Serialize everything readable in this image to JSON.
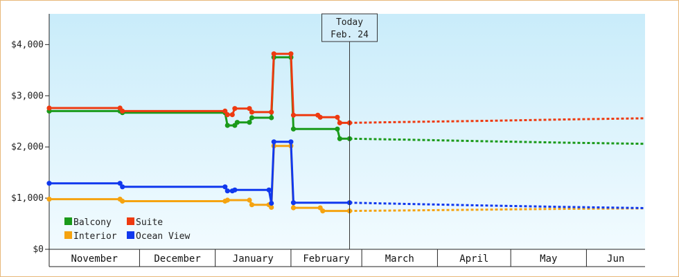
{
  "chart_data": {
    "type": "line",
    "ylabel": "",
    "xlabel": "",
    "ylim": [
      0,
      4600
    ],
    "xlim": [
      "2019-10-24",
      "2020-06-24"
    ],
    "y_ticks": [
      {
        "value": 0,
        "label": "$0"
      },
      {
        "value": 1000,
        "label": "$1,000"
      },
      {
        "value": 2000,
        "label": "$2,000"
      },
      {
        "value": 3000,
        "label": "$3,000"
      },
      {
        "value": 4000,
        "label": "$4,000"
      }
    ],
    "months": [
      {
        "label": "November",
        "start": "2019-10-24",
        "end": "2019-11-30"
      },
      {
        "label": "December",
        "start": "2019-11-30",
        "end": "2019-12-31"
      },
      {
        "label": "January",
        "start": "2019-12-31",
        "end": "2020-01-31"
      },
      {
        "label": "February",
        "start": "2020-01-31",
        "end": "2020-02-29"
      },
      {
        "label": "March",
        "start": "2020-02-29",
        "end": "2020-03-31"
      },
      {
        "label": "April",
        "start": "2020-03-31",
        "end": "2020-04-30"
      },
      {
        "label": "May",
        "start": "2020-04-30",
        "end": "2020-05-31"
      },
      {
        "label": "Jun",
        "start": "2020-05-31",
        "end": "2020-06-24"
      }
    ],
    "today": {
      "date": "2020-02-24",
      "label_line1": "Today",
      "label_line2": "Feb. 24"
    },
    "grid": false,
    "legend_position": "bottom-left",
    "series": [
      {
        "name": "Balcony",
        "color": "#1a9a1a",
        "points": [
          [
            "2019-10-24",
            2700
          ],
          [
            "2019-11-22",
            2700
          ],
          [
            "2019-11-23",
            2670
          ],
          [
            "2020-01-04",
            2670
          ],
          [
            "2020-01-05",
            2420
          ],
          [
            "2020-01-08",
            2420
          ],
          [
            "2020-01-09",
            2480
          ],
          [
            "2020-01-14",
            2480
          ],
          [
            "2020-01-15",
            2570
          ],
          [
            "2020-01-23",
            2570
          ],
          [
            "2020-01-24",
            3750
          ],
          [
            "2020-01-31",
            3750
          ],
          [
            "2020-02-01",
            2350
          ],
          [
            "2020-02-19",
            2350
          ],
          [
            "2020-02-20",
            2160
          ],
          [
            "2020-02-24",
            2160
          ]
        ],
        "forecast": [
          [
            "2020-02-24",
            2160
          ],
          [
            "2020-03-20",
            2140
          ],
          [
            "2020-04-20",
            2110
          ],
          [
            "2020-05-20",
            2085
          ],
          [
            "2020-06-24",
            2060
          ]
        ]
      },
      {
        "name": "Suite",
        "color": "#ee3a10",
        "points": [
          [
            "2019-10-24",
            2760
          ],
          [
            "2019-11-22",
            2760
          ],
          [
            "2019-11-23",
            2700
          ],
          [
            "2020-01-04",
            2700
          ],
          [
            "2020-01-05",
            2630
          ],
          [
            "2020-01-07",
            2630
          ],
          [
            "2020-01-08",
            2750
          ],
          [
            "2020-01-14",
            2750
          ],
          [
            "2020-01-15",
            2680
          ],
          [
            "2020-01-23",
            2680
          ],
          [
            "2020-01-24",
            3820
          ],
          [
            "2020-01-31",
            3820
          ],
          [
            "2020-02-01",
            2620
          ],
          [
            "2020-02-11",
            2620
          ],
          [
            "2020-02-12",
            2580
          ],
          [
            "2020-02-19",
            2580
          ],
          [
            "2020-02-20",
            2470
          ],
          [
            "2020-02-24",
            2470
          ]
        ],
        "forecast": [
          [
            "2020-02-24",
            2470
          ],
          [
            "2020-03-20",
            2490
          ],
          [
            "2020-04-20",
            2510
          ],
          [
            "2020-05-20",
            2535
          ],
          [
            "2020-06-24",
            2560
          ]
        ]
      },
      {
        "name": "Interior",
        "color": "#f5a310",
        "points": [
          [
            "2019-10-24",
            980
          ],
          [
            "2019-11-22",
            980
          ],
          [
            "2019-11-23",
            940
          ],
          [
            "2020-01-04",
            940
          ],
          [
            "2020-01-05",
            960
          ],
          [
            "2020-01-14",
            960
          ],
          [
            "2020-01-15",
            870
          ],
          [
            "2020-01-22",
            870
          ],
          [
            "2020-01-23",
            820
          ],
          [
            "2020-01-24",
            2020
          ],
          [
            "2020-01-31",
            2020
          ],
          [
            "2020-02-01",
            810
          ],
          [
            "2020-02-12",
            810
          ],
          [
            "2020-02-13",
            750
          ],
          [
            "2020-02-24",
            750
          ]
        ],
        "forecast": [
          [
            "2020-02-24",
            750
          ],
          [
            "2020-03-20",
            760
          ],
          [
            "2020-04-20",
            775
          ],
          [
            "2020-05-20",
            790
          ],
          [
            "2020-06-24",
            800
          ]
        ]
      },
      {
        "name": "Ocean View",
        "color": "#1038ee",
        "points": [
          [
            "2019-10-24",
            1290
          ],
          [
            "2019-11-22",
            1290
          ],
          [
            "2019-11-23",
            1220
          ],
          [
            "2020-01-04",
            1220
          ],
          [
            "2020-01-05",
            1140
          ],
          [
            "2020-01-07",
            1140
          ],
          [
            "2020-01-08",
            1160
          ],
          [
            "2020-01-22",
            1160
          ],
          [
            "2020-01-23",
            900
          ],
          [
            "2020-01-24",
            2100
          ],
          [
            "2020-01-31",
            2100
          ],
          [
            "2020-02-01",
            910
          ],
          [
            "2020-02-24",
            910
          ]
        ],
        "forecast": [
          [
            "2020-02-24",
            910
          ],
          [
            "2020-03-20",
            885
          ],
          [
            "2020-04-20",
            855
          ],
          [
            "2020-05-20",
            830
          ],
          [
            "2020-06-24",
            805
          ]
        ]
      }
    ]
  },
  "legend_items": [
    {
      "name": "Balcony",
      "color": "#1a9a1a"
    },
    {
      "name": "Suite",
      "color": "#ee3a10"
    },
    {
      "name": "Interior",
      "color": "#f5a310"
    },
    {
      "name": "Ocean View",
      "color": "#1038ee"
    }
  ]
}
